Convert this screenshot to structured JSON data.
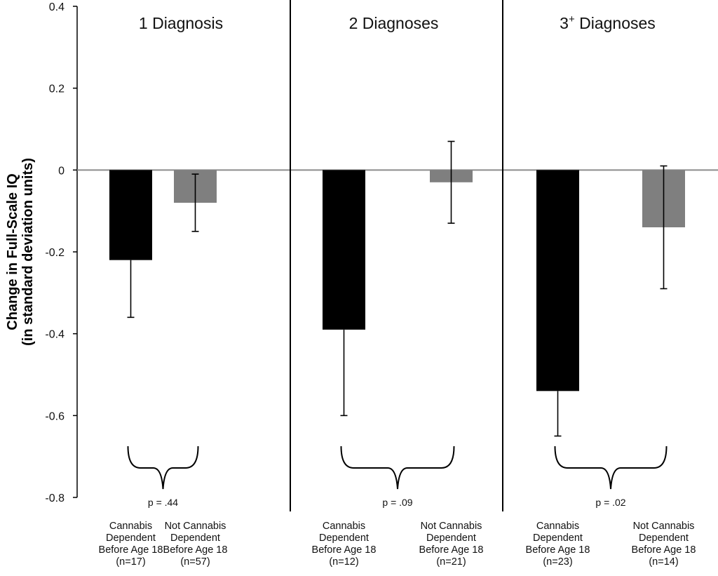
{
  "chart_data": {
    "type": "bar",
    "ylabel_lines": [
      "Change in Full-Scale IQ",
      "(in standard deviation units)"
    ],
    "ylim": [
      -0.8,
      0.4
    ],
    "yticks": [
      {
        "value": 0.4,
        "label": "0.4"
      },
      {
        "value": 0.2,
        "label": "0.2"
      },
      {
        "value": 0,
        "label": "0"
      },
      {
        "value": -0.2,
        "label": "-0.2"
      },
      {
        "value": -0.4,
        "label": "-0.4"
      },
      {
        "value": -0.6,
        "label": "-0.6"
      },
      {
        "value": -0.8,
        "label": "-0.8"
      }
    ],
    "grid": false,
    "colors": {
      "cannabis": "#000000",
      "not_cannabis": "#7f7f7f",
      "zero_line": "#8c8c8c"
    },
    "panels": [
      {
        "title": "1 Diagnosis",
        "title_sup": "",
        "p_value": "p = .44",
        "bars": [
          {
            "group": "cannabis",
            "label_lines": [
              "Cannabis",
              "Dependent",
              "Before Age 18",
              "(n=17)"
            ],
            "value": -0.22,
            "err_low": -0.36,
            "err_high": -0.22
          },
          {
            "group": "not_cannabis",
            "label_lines": [
              "Not Cannabis",
              "Dependent",
              "Before Age 18",
              "(n=57)"
            ],
            "value": -0.08,
            "err_low": -0.15,
            "err_high": -0.01
          }
        ]
      },
      {
        "title": "2 Diagnoses",
        "title_sup": "",
        "p_value": "p = .09",
        "bars": [
          {
            "group": "cannabis",
            "label_lines": [
              "Cannabis",
              "Dependent",
              "Before Age 18",
              "(n=12)"
            ],
            "value": -0.39,
            "err_low": -0.6,
            "err_high": -0.39
          },
          {
            "group": "not_cannabis",
            "label_lines": [
              "Not Cannabis",
              "Dependent",
              "Before Age 18",
              "(n=21)"
            ],
            "value": -0.03,
            "err_low": -0.13,
            "err_high": 0.07
          }
        ]
      },
      {
        "title": "3",
        "title_sup": "+",
        "title_rest": " Diagnoses",
        "p_value": "p = .02",
        "bars": [
          {
            "group": "cannabis",
            "label_lines": [
              "Cannabis",
              "Dependent",
              "Before Age 18",
              "(n=23)"
            ],
            "value": -0.54,
            "err_low": -0.65,
            "err_high": -0.54
          },
          {
            "group": "not_cannabis",
            "label_lines": [
              "Not Cannabis",
              "Dependent",
              "Before Age 18",
              "(n=14)"
            ],
            "value": -0.14,
            "err_low": -0.29,
            "err_high": 0.01
          }
        ]
      }
    ]
  }
}
